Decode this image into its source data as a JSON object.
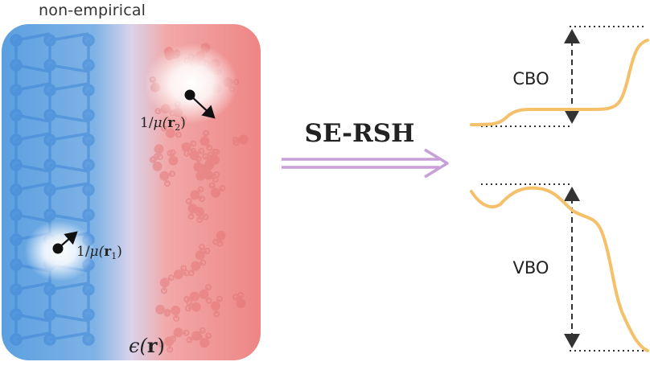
{
  "caption": "non-empirical",
  "method": "SE-RSH",
  "labels": {
    "mu1_prefix": "1/",
    "mu1_mid": "μ(",
    "mu1_r": "r",
    "mu1_sub": "1",
    "mu1_close": ")",
    "mu2_prefix": "1/",
    "mu2_mid": "μ(",
    "mu2_r": "r",
    "mu2_sub": "2",
    "mu2_close": ")",
    "eps": "ϵ(",
    "eps_r": "r",
    "eps_close": ")",
    "cbo": "CBO",
    "vbo": "VBO"
  },
  "colors": {
    "blue": "#5b9fe0",
    "red": "#ee8e8e",
    "arrow": "#c79fd9",
    "band": "#f5c06a",
    "dots": "#333333"
  }
}
